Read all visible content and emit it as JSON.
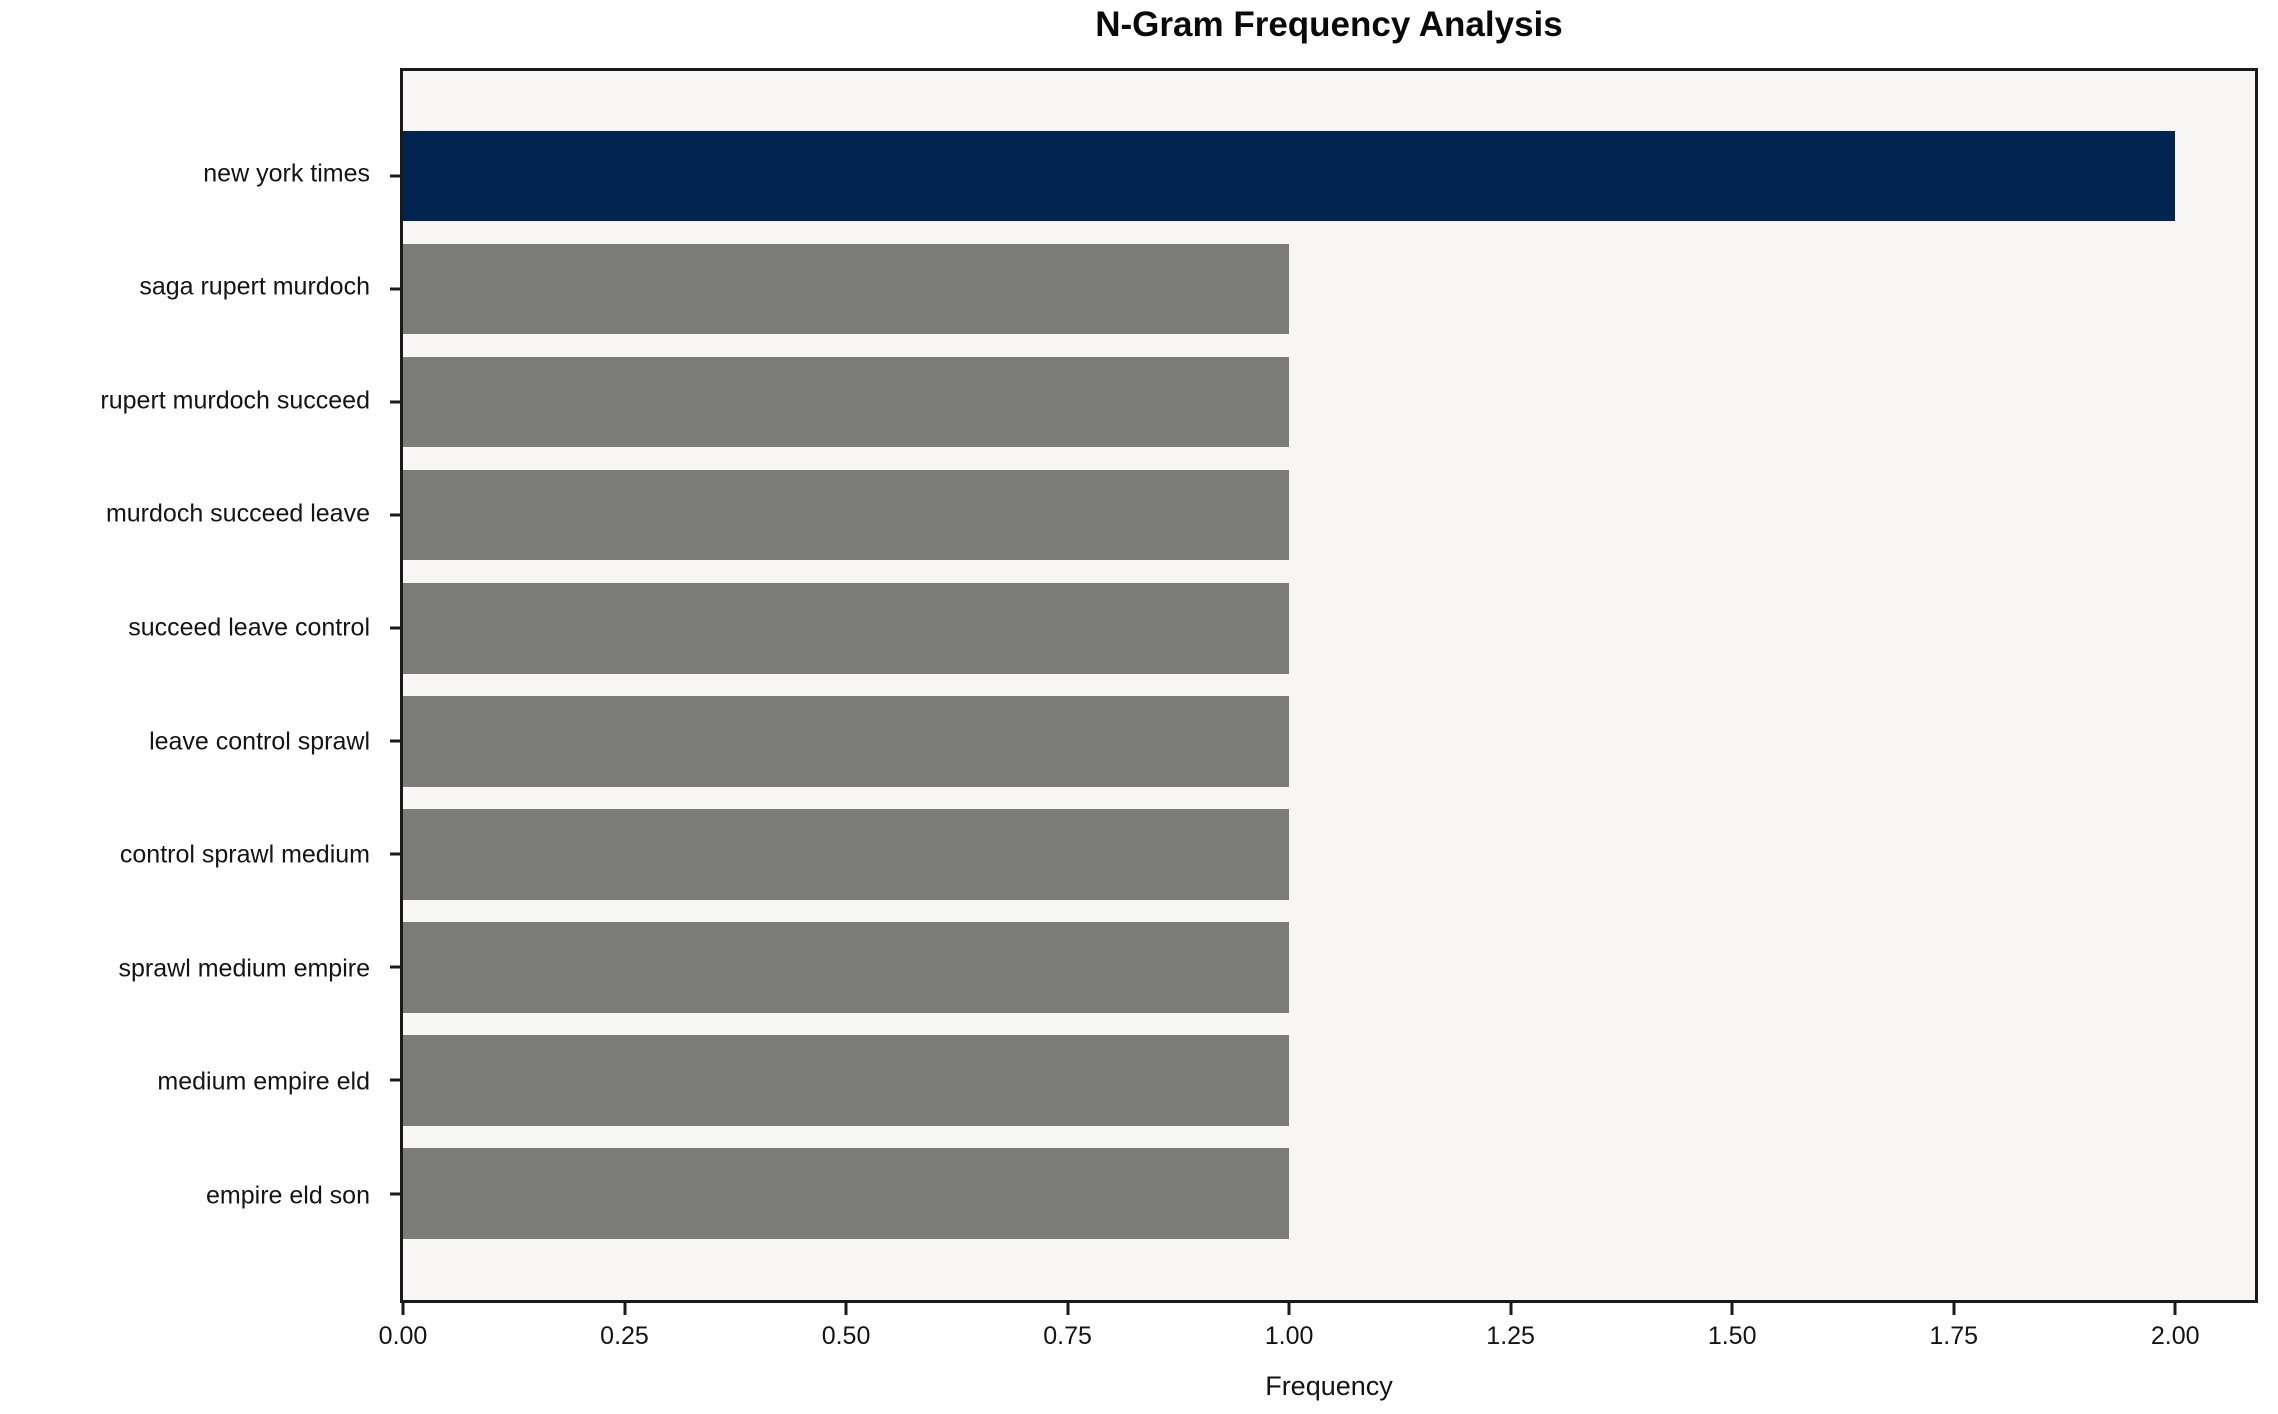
{
  "title": "N-Gram Frequency Analysis",
  "chart_data": {
    "type": "bar",
    "orientation": "horizontal",
    "title": "N-Gram Frequency Analysis",
    "xlabel": "Frequency",
    "ylabel": "",
    "categories": [
      "new york times",
      "saga rupert murdoch",
      "rupert murdoch succeed",
      "murdoch succeed leave",
      "succeed leave control",
      "leave control sprawl",
      "control sprawl medium",
      "sprawl medium empire",
      "medium empire eld",
      "empire eld son"
    ],
    "values": [
      2,
      1,
      1,
      1,
      1,
      1,
      1,
      1,
      1,
      1
    ],
    "bar_colors": [
      "#012550",
      "#7b7b77",
      "#7b7b77",
      "#7b7b77",
      "#7b7b77",
      "#7b7b77",
      "#7b7b77",
      "#7b7b77",
      "#7b7b77",
      "#7b7b77"
    ],
    "xlim": [
      0,
      2.09
    ],
    "x_ticks": [
      0,
      0.25,
      0.5,
      0.75,
      1,
      1.25,
      1.5,
      1.75,
      2
    ],
    "x_tick_labels": [
      "0.00",
      "0.25",
      "0.50",
      "0.75",
      "1.00",
      "1.25",
      "1.50",
      "1.75",
      "2.00"
    ],
    "grid": false,
    "legend": "none",
    "plot_background": "#f7f6f5",
    "figure_background": "#ffffff",
    "spine_color": "#1a1a1a",
    "highlight_color": "#012550",
    "default_bar_color": "#7b7b77"
  }
}
